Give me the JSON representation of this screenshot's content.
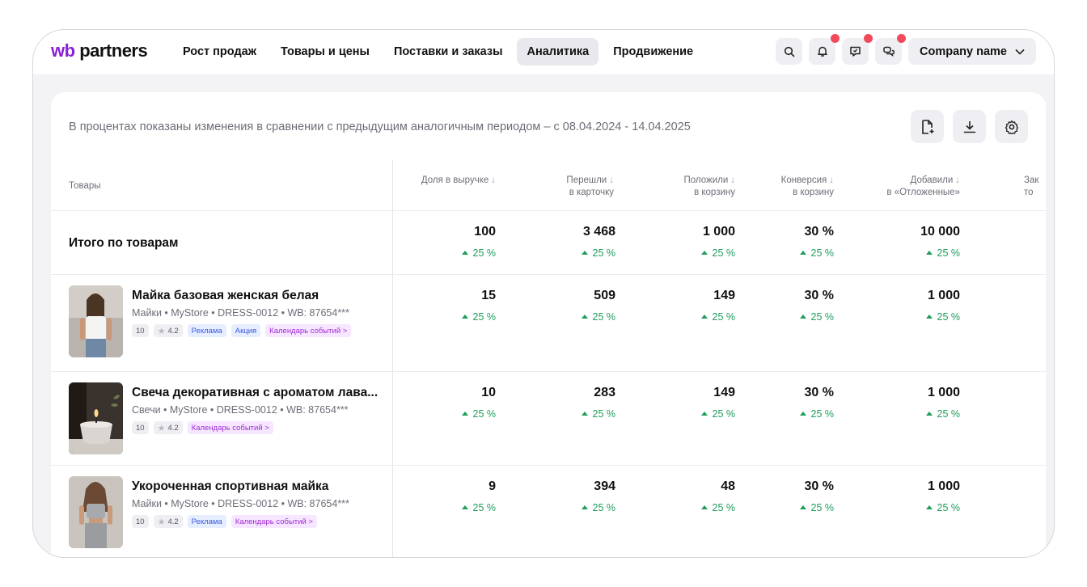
{
  "brand": {
    "logo_wb": "wb",
    "logo_text": "partners",
    "accent": "#8b1fd6"
  },
  "nav": [
    {
      "label": "Рост продаж",
      "active": false
    },
    {
      "label": "Товары и цены",
      "active": false
    },
    {
      "label": "Поставки и заказы",
      "active": false
    },
    {
      "label": "Аналитика",
      "active": true
    },
    {
      "label": "Продвижение",
      "active": false
    }
  ],
  "top_icons": [
    "search-icon",
    "bell-icon",
    "feedback-icon",
    "chat-icon"
  ],
  "company": {
    "name": "Company name"
  },
  "info": "В процентах показаны изменения в сравнении с предыдущим аналогичным периодом – с 08.04.2024 - 14.04.2025",
  "table": {
    "goods_header": "Товары",
    "columns": [
      {
        "l1": "Доля в выручке",
        "l2": ""
      },
      {
        "l1": "Перешли",
        "l2": "в карточку"
      },
      {
        "l1": "Положили",
        "l2": "в корзину"
      },
      {
        "l1": "Конверсия",
        "l2": "в корзину"
      },
      {
        "l1": "Добавили",
        "l2": "в «Отложенные»"
      },
      {
        "l1": "Зак",
        "l2": "то"
      }
    ],
    "total": {
      "title": "Итого по товарам",
      "values": [
        "100",
        "3 468",
        "1 000",
        "30 %",
        "10 000"
      ],
      "deltas": [
        "25 %",
        "25 %",
        "25 %",
        "25 %",
        "25 %"
      ]
    },
    "rows": [
      {
        "title": "Майка базовая женская белая",
        "sub": "Майки • MyStore • DRESS-0012 • WB: 87654***",
        "chips": [
          {
            "text": "10",
            "kind": "grey"
          },
          {
            "text": "4.2",
            "kind": "star"
          },
          {
            "text": "Реклама",
            "kind": "blue"
          },
          {
            "text": "Акция",
            "kind": "blue"
          },
          {
            "text": "Календарь событий  >",
            "kind": "purple"
          }
        ],
        "values": [
          "15",
          "509",
          "149",
          "30 %",
          "1 000"
        ],
        "deltas": [
          "25 %",
          "25 %",
          "25 %",
          "25 %",
          "25 %"
        ]
      },
      {
        "title": "Свеча декоративная с ароматом лава...",
        "sub": "Свечи • MyStore • DRESS-0012 • WB: 87654***",
        "chips": [
          {
            "text": "10",
            "kind": "grey"
          },
          {
            "text": "4.2",
            "kind": "star"
          },
          {
            "text": "Календарь событий  >",
            "kind": "purple"
          }
        ],
        "values": [
          "10",
          "283",
          "149",
          "30 %",
          "1 000"
        ],
        "deltas": [
          "25 %",
          "25 %",
          "25 %",
          "25 %",
          "25 %"
        ]
      },
      {
        "title": "Укороченная спортивная майка",
        "sub": "Майки • MyStore • DRESS-0012 • WB: 87654***",
        "chips": [
          {
            "text": "10",
            "kind": "grey"
          },
          {
            "text": "4.2",
            "kind": "star"
          },
          {
            "text": "Реклама",
            "kind": "blue"
          },
          {
            "text": "Календарь событий  >",
            "kind": "purple"
          }
        ],
        "values": [
          "9",
          "394",
          "48",
          "30 %",
          "1 000"
        ],
        "deltas": [
          "25 %",
          "25 %",
          "25 %",
          "25 %",
          "25 %"
        ]
      }
    ]
  },
  "colors": {
    "positive": "#1e9e5a",
    "notification_dot": "#f2495b"
  }
}
